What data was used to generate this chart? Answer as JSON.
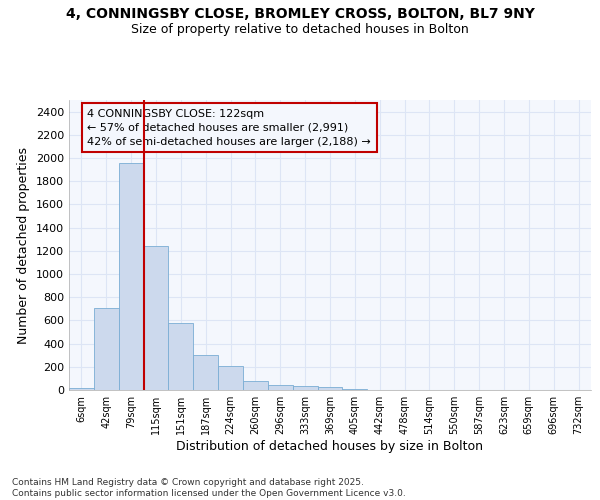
{
  "title_line1": "4, CONNINGSBY CLOSE, BROMLEY CROSS, BOLTON, BL7 9NY",
  "title_line2": "Size of property relative to detached houses in Bolton",
  "xlabel": "Distribution of detached houses by size in Bolton",
  "ylabel": "Number of detached properties",
  "bar_color": "#ccd9ed",
  "bar_edge_color": "#7aadd4",
  "bins": [
    "6sqm",
    "42sqm",
    "79sqm",
    "115sqm",
    "151sqm",
    "187sqm",
    "224sqm",
    "260sqm",
    "296sqm",
    "333sqm",
    "369sqm",
    "405sqm",
    "442sqm",
    "478sqm",
    "514sqm",
    "550sqm",
    "587sqm",
    "623sqm",
    "659sqm",
    "696sqm",
    "732sqm"
  ],
  "values": [
    15,
    710,
    1960,
    1240,
    575,
    305,
    205,
    80,
    45,
    35,
    30,
    5,
    0,
    0,
    0,
    0,
    0,
    0,
    0,
    0,
    0
  ],
  "ylim": [
    0,
    2500
  ],
  "yticks": [
    0,
    200,
    400,
    600,
    800,
    1000,
    1200,
    1400,
    1600,
    1800,
    2000,
    2200,
    2400
  ],
  "vline_color": "#c00000",
  "annotation_title": "4 CONNINGSBY CLOSE: 122sqm",
  "annotation_line1": "← 57% of detached houses are smaller (2,991)",
  "annotation_line2": "42% of semi-detached houses are larger (2,188) →",
  "bg_color": "#f4f7fd",
  "grid_color": "#dde5f5",
  "footer_line1": "Contains HM Land Registry data © Crown copyright and database right 2025.",
  "footer_line2": "Contains public sector information licensed under the Open Government Licence v3.0."
}
